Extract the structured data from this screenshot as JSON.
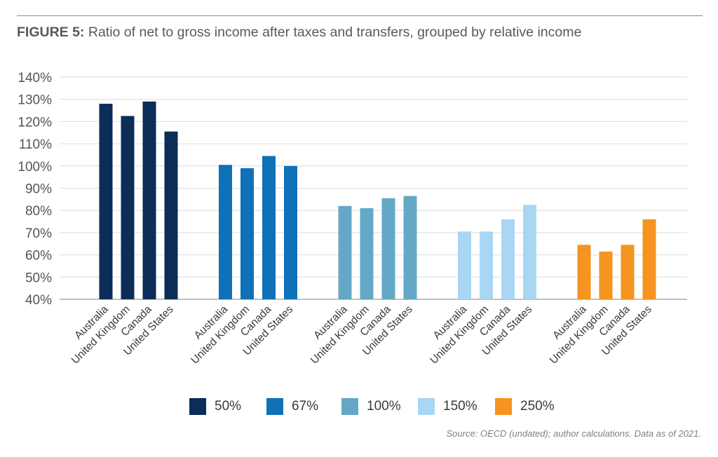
{
  "title_prefix": "FIGURE 5:",
  "title_text": "Ratio of net to gross income after taxes and transfers, grouped by relative income",
  "source": "Source: OECD (undated); author calculations. Data as of 2021.",
  "chart_data": {
    "type": "bar",
    "title": "Ratio of net to gross income after taxes and transfers, grouped by relative income",
    "xlabel": "",
    "ylabel": "",
    "ylim": [
      40,
      140
    ],
    "yticks": [
      "40%",
      "50%",
      "60%",
      "70%",
      "80%",
      "90%",
      "100%",
      "110%",
      "120%",
      "130%",
      "140%"
    ],
    "grid": true,
    "legend_position": "bottom",
    "categories": [
      "Australia",
      "United Kingdom",
      "Canada",
      "United States"
    ],
    "series": [
      {
        "name": "50%",
        "color": "#0b2d57",
        "values": [
          128,
          122.5,
          129,
          115.5
        ]
      },
      {
        "name": "67%",
        "color": "#0f72b8",
        "values": [
          100.5,
          99,
          104.5,
          100
        ]
      },
      {
        "name": "100%",
        "color": "#64a8c6",
        "values": [
          82,
          81,
          85.5,
          86.5
        ]
      },
      {
        "name": "150%",
        "color": "#a8d6f3",
        "values": [
          70.5,
          70.5,
          76,
          82.5
        ]
      },
      {
        "name": "250%",
        "color": "#f5941e",
        "values": [
          64.5,
          61.5,
          64.5,
          76
        ]
      }
    ]
  }
}
